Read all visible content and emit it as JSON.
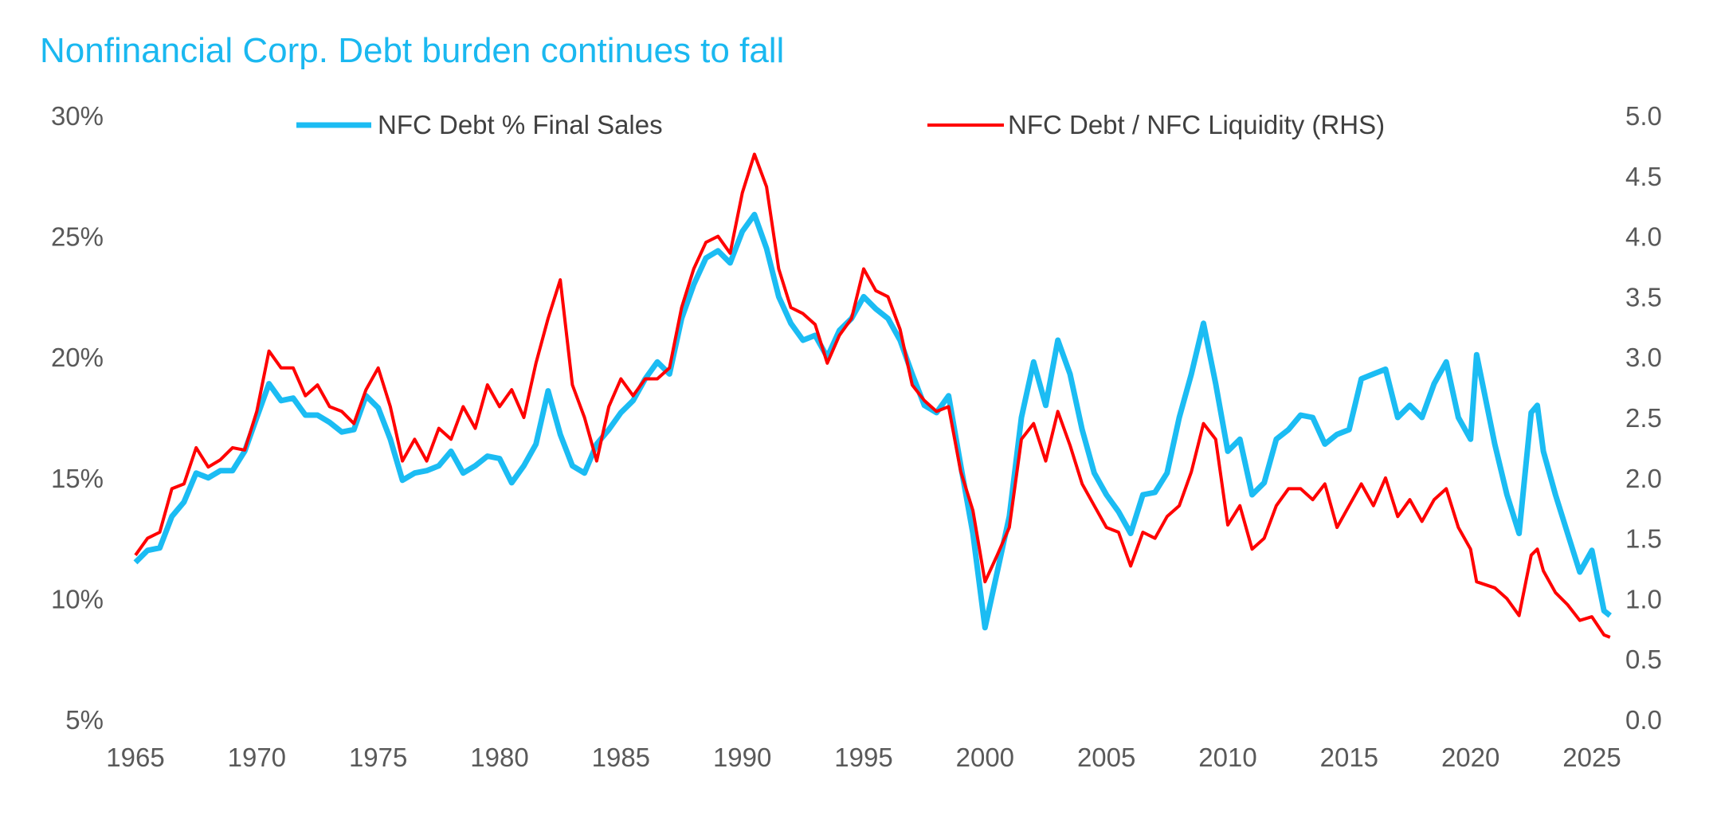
{
  "chart_data": {
    "type": "line",
    "title": "Nonfinancial Corp. Debt burden continues to fall",
    "title_color": "#1ab8f0",
    "legend_placement": "top",
    "grid": false,
    "xlim": [
      1965,
      2025.75
    ],
    "x_ticks": [
      "1965",
      "1970",
      "1975",
      "1980",
      "1985",
      "1990",
      "1995",
      "2000",
      "2005",
      "2010",
      "2015",
      "2020",
      "2025"
    ],
    "y_left": {
      "range": [
        5,
        30
      ],
      "ticks": [
        "5%",
        "10%",
        "15%",
        "20%",
        "25%",
        "30%"
      ]
    },
    "y_right": {
      "range": [
        0,
        5
      ],
      "ticks": [
        "0.0",
        "0.5",
        "1.0",
        "1.5",
        "2.0",
        "2.5",
        "3.0",
        "3.5",
        "4.0",
        "4.5",
        "5.0"
      ]
    },
    "x": [
      1965,
      1965.5,
      1966,
      1966.5,
      1967,
      1967.5,
      1968,
      1968.5,
      1969,
      1969.5,
      1970,
      1970.5,
      1971,
      1971.5,
      1972,
      1972.5,
      1973,
      1973.5,
      1974,
      1974.5,
      1975,
      1975.5,
      1976,
      1976.5,
      1977,
      1977.5,
      1978,
      1978.5,
      1979,
      1979.5,
      1980,
      1980.5,
      1981,
      1981.5,
      1982,
      1982.5,
      1983,
      1983.5,
      1984,
      1984.5,
      1985,
      1985.5,
      1986,
      1986.5,
      1987,
      1987.5,
      1988,
      1988.5,
      1989,
      1989.5,
      1990,
      1990.5,
      1991,
      1991.5,
      1992,
      1992.5,
      1993,
      1993.5,
      1994,
      1994.5,
      1995,
      1995.5,
      1996,
      1996.5,
      1997,
      1997.5,
      1998,
      1998.5,
      1999,
      1999.5,
      2000,
      2000.5,
      2001,
      2001.5,
      2002,
      2002.5,
      2003,
      2003.5,
      2004,
      2004.5,
      2005,
      2005.5,
      2006,
      2006.5,
      2007,
      2007.5,
      2008,
      2008.5,
      2009,
      2009.5,
      2010,
      2010.5,
      2011,
      2011.5,
      2012,
      2012.5,
      2013,
      2013.5,
      2014,
      2014.5,
      2015,
      2015.5,
      2016,
      2016.5,
      2017,
      2017.5,
      2018,
      2018.5,
      2019,
      2019.5,
      2020,
      2020.25,
      2021,
      2021.5,
      2022,
      2022.5,
      2022.75,
      2023,
      2023.5,
      2024,
      2024.5,
      2025,
      2025.5,
      2025.75
    ],
    "series": [
      {
        "name": "NFC Debt % Final Sales",
        "axis": "left",
        "color": "#1bbcf3",
        "values": [
          11.5,
          12.0,
          12.1,
          13.4,
          14.0,
          15.2,
          15.0,
          15.3,
          15.3,
          16.1,
          17.5,
          18.9,
          18.2,
          18.3,
          17.6,
          17.6,
          17.3,
          16.9,
          17.0,
          18.4,
          17.9,
          16.6,
          14.9,
          15.2,
          15.3,
          15.5,
          16.1,
          15.2,
          15.5,
          15.9,
          15.8,
          14.8,
          15.5,
          16.4,
          18.6,
          16.8,
          15.5,
          15.2,
          16.4,
          17.0,
          17.7,
          18.2,
          19.1,
          19.8,
          19.3,
          21.6,
          23.0,
          24.1,
          24.4,
          23.9,
          25.2,
          25.9,
          24.5,
          22.5,
          21.4,
          20.7,
          20.9,
          20.0,
          21.1,
          21.6,
          22.5,
          22.0,
          21.6,
          20.7,
          19.3,
          18.0,
          17.7,
          18.4,
          15.5,
          12.7,
          8.8,
          11.1,
          13.4,
          17.5,
          19.8,
          18.0,
          20.7,
          19.3,
          17.0,
          15.2,
          14.3,
          13.6,
          12.7,
          14.3,
          14.4,
          15.2,
          17.5,
          19.3,
          21.4,
          18.9,
          16.1,
          16.6,
          14.3,
          14.8,
          16.6,
          17.0,
          17.6,
          17.5,
          16.4,
          16.8,
          17.0,
          19.1,
          19.3,
          19.5,
          17.5,
          18.0,
          17.5,
          18.9,
          19.8,
          17.5,
          16.6,
          20.1,
          16.4,
          14.3,
          12.7,
          17.7,
          18.0,
          16.1,
          14.3,
          12.7,
          11.1,
          12.0,
          9.5,
          9.3
        ]
      },
      {
        "name": "NFC Debt / NFC Liquidity (RHS)",
        "axis": "right",
        "color": "#ff0000",
        "values": [
          1.36,
          1.5,
          1.55,
          1.91,
          1.95,
          2.25,
          2.09,
          2.15,
          2.25,
          2.23,
          2.55,
          3.05,
          2.91,
          2.91,
          2.68,
          2.77,
          2.59,
          2.55,
          2.45,
          2.73,
          2.91,
          2.59,
          2.14,
          2.32,
          2.14,
          2.41,
          2.32,
          2.59,
          2.41,
          2.77,
          2.59,
          2.73,
          2.5,
          2.95,
          3.32,
          3.64,
          2.77,
          2.5,
          2.14,
          2.59,
          2.82,
          2.68,
          2.82,
          2.82,
          2.91,
          3.41,
          3.73,
          3.95,
          4.0,
          3.86,
          4.36,
          4.68,
          4.41,
          3.73,
          3.41,
          3.36,
          3.27,
          2.95,
          3.18,
          3.32,
          3.73,
          3.55,
          3.5,
          3.23,
          2.77,
          2.64,
          2.55,
          2.59,
          2.05,
          1.73,
          1.14,
          1.36,
          1.59,
          2.32,
          2.45,
          2.14,
          2.55,
          2.27,
          1.95,
          1.77,
          1.59,
          1.55,
          1.27,
          1.55,
          1.5,
          1.68,
          1.77,
          2.05,
          2.45,
          2.32,
          1.61,
          1.77,
          1.41,
          1.5,
          1.77,
          1.91,
          1.91,
          1.82,
          1.95,
          1.59,
          1.77,
          1.95,
          1.77,
          2.0,
          1.68,
          1.82,
          1.64,
          1.82,
          1.91,
          1.59,
          1.41,
          1.14,
          1.09,
          1.0,
          0.86,
          1.36,
          1.41,
          1.23,
          1.05,
          0.95,
          0.82,
          0.85,
          0.7,
          0.68
        ]
      }
    ]
  }
}
